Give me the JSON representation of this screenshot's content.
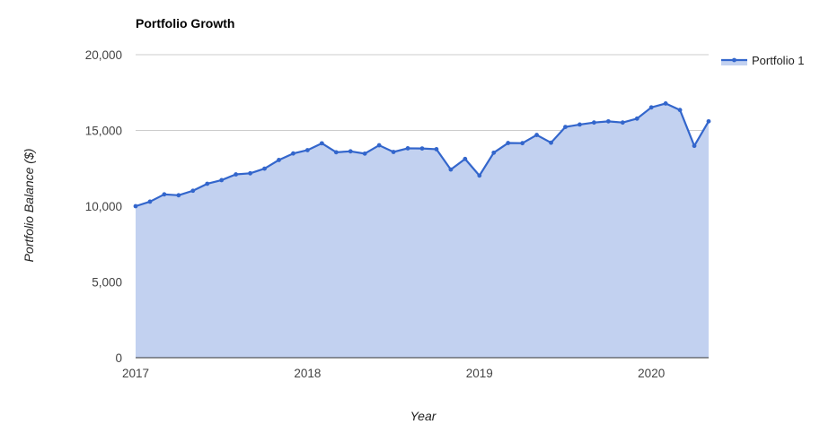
{
  "chart_data": {
    "type": "area",
    "title": "Portfolio Growth",
    "xlabel": "Year",
    "ylabel": "Portfolio Balance ($)",
    "ylim": [
      0,
      20000
    ],
    "y_ticks": [
      "0",
      "5,000",
      "10,000",
      "15,000",
      "20,000"
    ],
    "y_tick_values": [
      0,
      5000,
      10000,
      15000,
      20000
    ],
    "x_ticks": [
      "2017",
      "2018",
      "2019",
      "2020"
    ],
    "x_tick_values": [
      "2017-01",
      "2018-01",
      "2019-01",
      "2020-01"
    ],
    "x_range": [
      "2017-01",
      "2020-05"
    ],
    "legend_position": "top-right",
    "grid": true,
    "series": [
      {
        "name": "Portfolio 1",
        "color": "#3366cc",
        "fill_color": "#c2d1f0",
        "x": [
          "2017-01",
          "2017-02",
          "2017-03",
          "2017-04",
          "2017-05",
          "2017-06",
          "2017-07",
          "2017-08",
          "2017-09",
          "2017-10",
          "2017-11",
          "2017-12",
          "2018-01",
          "2018-02",
          "2018-03",
          "2018-04",
          "2018-05",
          "2018-06",
          "2018-07",
          "2018-08",
          "2018-09",
          "2018-10",
          "2018-11",
          "2018-12",
          "2019-01",
          "2019-02",
          "2019-03",
          "2019-04",
          "2019-05",
          "2019-06",
          "2019-07",
          "2019-08",
          "2019-09",
          "2019-10",
          "2019-11",
          "2019-12",
          "2020-01",
          "2020-02",
          "2020-03",
          "2020-04",
          "2020-05"
        ],
        "values": [
          10000,
          10300,
          10780,
          10720,
          11020,
          11480,
          11720,
          12100,
          12170,
          12480,
          13050,
          13480,
          13700,
          14150,
          13560,
          13620,
          13470,
          14020,
          13580,
          13820,
          13810,
          13760,
          12420,
          13120,
          12020,
          13530,
          14170,
          14160,
          14700,
          14190,
          15230,
          15390,
          15520,
          15600,
          15520,
          15780,
          16520,
          16780,
          16350,
          13980,
          15600
        ]
      }
    ]
  }
}
